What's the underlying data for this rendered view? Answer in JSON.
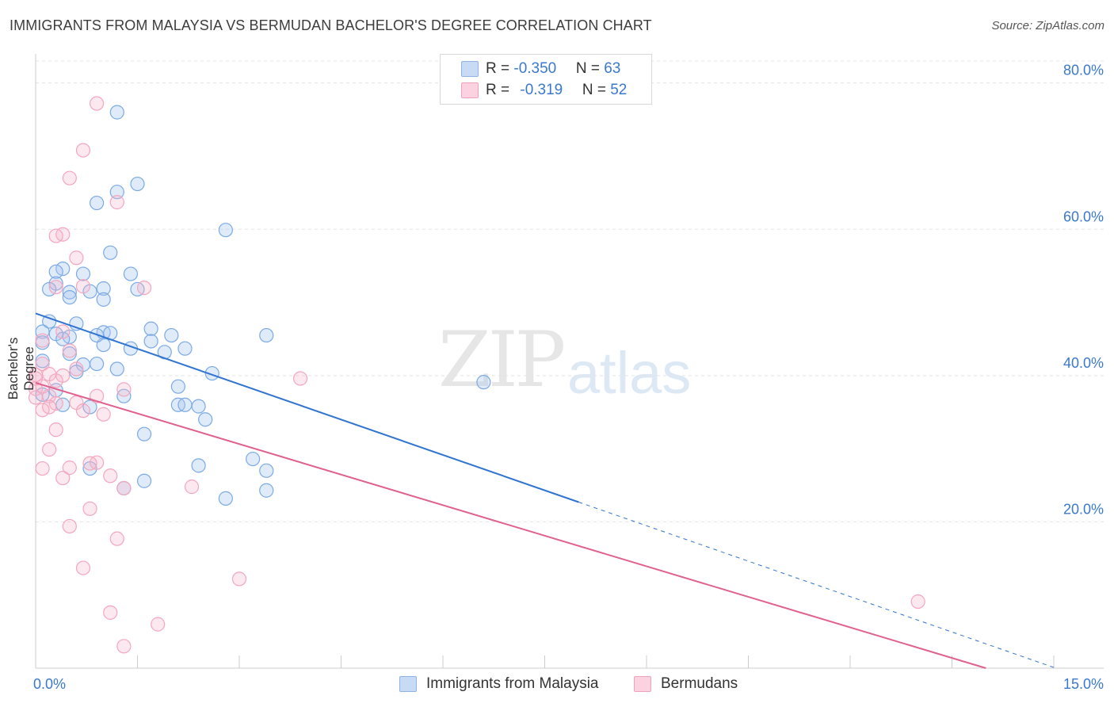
{
  "title": "IMMIGRANTS FROM MALAYSIA VS BERMUDAN BACHELOR'S DEGREE CORRELATION CHART",
  "source": "Source: ZipAtlas.com",
  "watermark": {
    "zip": "ZIP",
    "atlas": "atlas"
  },
  "legend": {
    "rows": [
      {
        "r_label": "R = ",
        "r_value": "-0.350",
        "n_label": "N = ",
        "n_value": "63",
        "color": "#a7c6ee"
      },
      {
        "r_label": "R = ",
        "r_value": "-0.319",
        "n_label": "N = ",
        "n_value": "52",
        "color": "#f5b4c9"
      }
    ]
  },
  "chart_data": {
    "type": "scatter",
    "title": "IMMIGRANTS FROM MALAYSIA VS BERMUDAN BACHELOR'S DEGREE CORRELATION CHART",
    "xlabel": "",
    "ylabel": "Bachelor's Degree",
    "xlim": [
      0,
      15
    ],
    "ylim": [
      0,
      83
    ],
    "x_tick_labels": [
      "0.0%",
      "15.0%"
    ],
    "y_ticks": [
      20,
      40,
      60,
      80
    ],
    "y_tick_labels": [
      "20.0%",
      "40.0%",
      "60.0%",
      "80.0%"
    ],
    "grid": true,
    "legend_position": "top-center",
    "series": [
      {
        "name": "Immigrants from Malaysia",
        "color": "#7aaae6",
        "line_color": "#2f74d0",
        "trend": {
          "x0": 0.0,
          "y0": 48.5,
          "x1": 8.0,
          "y1": 22.7,
          "dash_to_x": 15.0,
          "dash_to_y": 0.1
        },
        "points": [
          [
            1.2,
            76.0
          ],
          [
            1.5,
            66.2
          ],
          [
            1.2,
            65.1
          ],
          [
            0.9,
            63.6
          ],
          [
            2.8,
            59.9
          ],
          [
            1.1,
            56.8
          ],
          [
            0.4,
            54.6
          ],
          [
            0.3,
            54.2
          ],
          [
            0.7,
            53.9
          ],
          [
            1.4,
            53.9
          ],
          [
            0.3,
            52.6
          ],
          [
            0.2,
            51.8
          ],
          [
            1.0,
            51.9
          ],
          [
            1.5,
            51.8
          ],
          [
            0.5,
            51.4
          ],
          [
            0.8,
            51.5
          ],
          [
            0.5,
            50.7
          ],
          [
            1.0,
            50.4
          ],
          [
            0.2,
            47.4
          ],
          [
            0.6,
            47.1
          ],
          [
            0.1,
            46.0
          ],
          [
            0.3,
            45.7
          ],
          [
            1.0,
            45.9
          ],
          [
            1.1,
            45.8
          ],
          [
            1.7,
            46.4
          ],
          [
            0.5,
            45.3
          ],
          [
            0.4,
            45.0
          ],
          [
            2.0,
            45.5
          ],
          [
            0.1,
            44.5
          ],
          [
            1.0,
            44.2
          ],
          [
            1.7,
            44.7
          ],
          [
            1.4,
            43.7
          ],
          [
            2.2,
            43.7
          ],
          [
            1.9,
            43.2
          ],
          [
            0.1,
            42.0
          ],
          [
            0.9,
            41.6
          ],
          [
            0.7,
            41.5
          ],
          [
            0.6,
            40.5
          ],
          [
            2.6,
            40.3
          ],
          [
            6.6,
            39.1
          ],
          [
            2.1,
            38.5
          ],
          [
            1.3,
            37.2
          ],
          [
            0.1,
            37.4
          ],
          [
            0.4,
            36.0
          ],
          [
            2.1,
            36.0
          ],
          [
            2.2,
            36.0
          ],
          [
            2.4,
            35.8
          ],
          [
            0.8,
            35.7
          ],
          [
            2.5,
            34.0
          ],
          [
            1.6,
            32.0
          ],
          [
            3.2,
            28.6
          ],
          [
            2.4,
            27.7
          ],
          [
            0.8,
            27.3
          ],
          [
            3.4,
            27.0
          ],
          [
            1.6,
            25.6
          ],
          [
            1.3,
            24.6
          ],
          [
            3.4,
            24.3
          ],
          [
            2.8,
            23.2
          ],
          [
            3.4,
            45.5
          ],
          [
            0.9,
            45.5
          ],
          [
            0.5,
            43.0
          ],
          [
            1.2,
            40.9
          ],
          [
            0.3,
            38.0
          ]
        ]
      },
      {
        "name": "Bermudans",
        "color": "#f4a6be",
        "line_color": "#e0628c",
        "trend": {
          "x0": 0.0,
          "y0": 39.0,
          "x1": 14.0,
          "y1": 0.0
        },
        "points": [
          [
            0.9,
            77.2
          ],
          [
            0.7,
            70.8
          ],
          [
            0.5,
            67.0
          ],
          [
            1.2,
            63.7
          ],
          [
            0.4,
            59.3
          ],
          [
            0.3,
            59.1
          ],
          [
            0.6,
            56.1
          ],
          [
            0.3,
            52.1
          ],
          [
            1.6,
            52.0
          ],
          [
            0.7,
            52.2
          ],
          [
            0.4,
            46.0
          ],
          [
            0.1,
            44.8
          ],
          [
            0.5,
            43.4
          ],
          [
            0.1,
            41.6
          ],
          [
            0.6,
            40.9
          ],
          [
            0.4,
            40.0
          ],
          [
            0.2,
            40.2
          ],
          [
            0.0,
            40.1
          ],
          [
            0.0,
            39.6
          ],
          [
            0.3,
            39.3
          ],
          [
            3.9,
            39.6
          ],
          [
            0.1,
            38.5
          ],
          [
            1.3,
            38.1
          ],
          [
            0.2,
            37.2
          ],
          [
            0.9,
            37.2
          ],
          [
            0.3,
            36.2
          ],
          [
            0.6,
            36.3
          ],
          [
            0.2,
            35.7
          ],
          [
            0.1,
            35.3
          ],
          [
            0.7,
            35.2
          ],
          [
            1.0,
            34.7
          ],
          [
            0.3,
            32.6
          ],
          [
            0.2,
            29.9
          ],
          [
            0.9,
            28.1
          ],
          [
            0.8,
            28.0
          ],
          [
            0.5,
            27.4
          ],
          [
            0.1,
            27.3
          ],
          [
            1.1,
            26.3
          ],
          [
            0.4,
            26.0
          ],
          [
            2.3,
            24.8
          ],
          [
            1.3,
            24.6
          ],
          [
            0.8,
            21.8
          ],
          [
            0.5,
            19.4
          ],
          [
            1.2,
            17.7
          ],
          [
            0.7,
            13.7
          ],
          [
            3.0,
            12.2
          ],
          [
            1.1,
            7.6
          ],
          [
            1.8,
            6.0
          ],
          [
            1.3,
            3.0
          ],
          [
            13.0,
            9.1
          ],
          [
            0.0,
            38.2
          ],
          [
            0.0,
            37.0
          ]
        ]
      }
    ]
  }
}
